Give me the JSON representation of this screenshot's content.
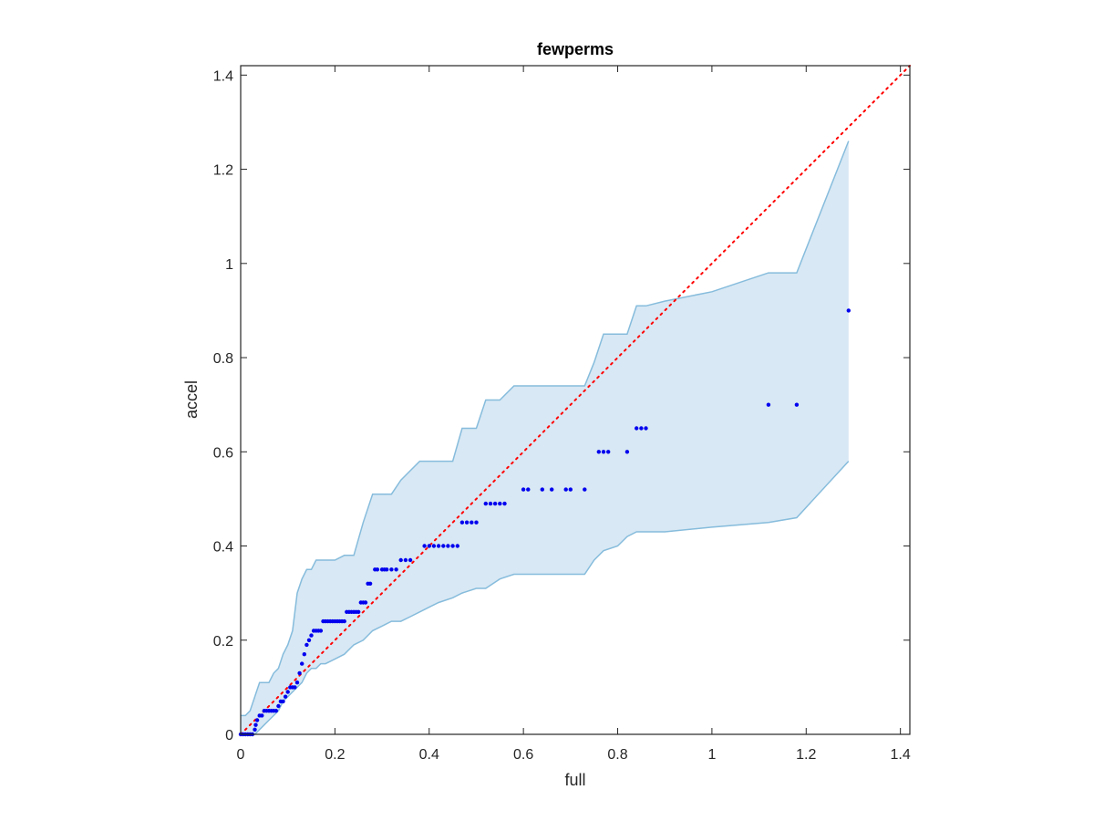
{
  "chart_data": {
    "type": "scatter",
    "title": "fewperms",
    "xlabel": "full",
    "ylabel": "accel",
    "xlim": [
      0,
      1.42
    ],
    "ylim": [
      0,
      1.42
    ],
    "xticks": [
      0,
      0.2,
      0.4,
      0.6,
      0.8,
      1,
      1.2,
      1.4
    ],
    "yticks": [
      0,
      0.2,
      0.4,
      0.6,
      0.8,
      1,
      1.2,
      1.4
    ],
    "xtick_labels": [
      "0",
      "0.2",
      "0.4",
      "0.6",
      "0.8",
      "1",
      "1.2",
      "1.4"
    ],
    "ytick_labels": [
      "0",
      "0.2",
      "0.4",
      "0.6",
      "0.8",
      "1",
      "1.2",
      "1.4"
    ],
    "grid": false,
    "colors": {
      "points": "#0000ee",
      "band_fill": "#d8e8f4",
      "band_edge": "#86bcdc",
      "reference_line": "#ff0000",
      "axes": "#262626"
    },
    "reference_line": {
      "style": "dotted",
      "from": [
        0,
        0
      ],
      "to": [
        1.42,
        1.42
      ]
    },
    "band_x": [
      0,
      0.01,
      0.02,
      0.03,
      0.04,
      0.05,
      0.06,
      0.07,
      0.08,
      0.09,
      0.1,
      0.11,
      0.12,
      0.13,
      0.14,
      0.15,
      0.16,
      0.17,
      0.18,
      0.2,
      0.22,
      0.24,
      0.26,
      0.28,
      0.3,
      0.32,
      0.34,
      0.36,
      0.38,
      0.4,
      0.42,
      0.45,
      0.47,
      0.5,
      0.52,
      0.55,
      0.58,
      0.6,
      0.65,
      0.7,
      0.73,
      0.75,
      0.77,
      0.8,
      0.82,
      0.84,
      0.86,
      0.9,
      1.0,
      1.12,
      1.18,
      1.29
    ],
    "band_upper": [
      0.04,
      0.04,
      0.05,
      0.08,
      0.11,
      0.11,
      0.11,
      0.13,
      0.14,
      0.17,
      0.19,
      0.22,
      0.3,
      0.33,
      0.35,
      0.35,
      0.37,
      0.37,
      0.37,
      0.37,
      0.38,
      0.38,
      0.45,
      0.51,
      0.51,
      0.51,
      0.54,
      0.56,
      0.58,
      0.58,
      0.58,
      0.58,
      0.65,
      0.65,
      0.71,
      0.71,
      0.74,
      0.74,
      0.74,
      0.74,
      0.74,
      0.79,
      0.85,
      0.85,
      0.85,
      0.91,
      0.91,
      0.92,
      0.94,
      0.98,
      0.98,
      1.26
    ],
    "band_lower": [
      0,
      0,
      0,
      0,
      0.01,
      0.02,
      0.03,
      0.04,
      0.05,
      0.07,
      0.08,
      0.09,
      0.1,
      0.11,
      0.13,
      0.14,
      0.14,
      0.15,
      0.15,
      0.16,
      0.17,
      0.19,
      0.2,
      0.22,
      0.23,
      0.24,
      0.24,
      0.25,
      0.26,
      0.27,
      0.28,
      0.29,
      0.3,
      0.31,
      0.31,
      0.33,
      0.34,
      0.34,
      0.34,
      0.34,
      0.34,
      0.37,
      0.39,
      0.4,
      0.42,
      0.43,
      0.43,
      0.43,
      0.44,
      0.45,
      0.46,
      0.58
    ],
    "points": [
      [
        0.0,
        0.0
      ],
      [
        0.005,
        0.0
      ],
      [
        0.01,
        0.0
      ],
      [
        0.015,
        0.0
      ],
      [
        0.02,
        0.0
      ],
      [
        0.025,
        0.0
      ],
      [
        0.03,
        0.01
      ],
      [
        0.032,
        0.02
      ],
      [
        0.035,
        0.03
      ],
      [
        0.04,
        0.04
      ],
      [
        0.045,
        0.04
      ],
      [
        0.05,
        0.05
      ],
      [
        0.055,
        0.05
      ],
      [
        0.06,
        0.05
      ],
      [
        0.065,
        0.05
      ],
      [
        0.07,
        0.05
      ],
      [
        0.075,
        0.05
      ],
      [
        0.08,
        0.06
      ],
      [
        0.085,
        0.07
      ],
      [
        0.09,
        0.07
      ],
      [
        0.095,
        0.08
      ],
      [
        0.1,
        0.09
      ],
      [
        0.105,
        0.1
      ],
      [
        0.11,
        0.1
      ],
      [
        0.115,
        0.1
      ],
      [
        0.12,
        0.11
      ],
      [
        0.125,
        0.13
      ],
      [
        0.13,
        0.15
      ],
      [
        0.135,
        0.17
      ],
      [
        0.14,
        0.19
      ],
      [
        0.145,
        0.2
      ],
      [
        0.15,
        0.21
      ],
      [
        0.155,
        0.22
      ],
      [
        0.16,
        0.22
      ],
      [
        0.165,
        0.22
      ],
      [
        0.17,
        0.22
      ],
      [
        0.175,
        0.24
      ],
      [
        0.18,
        0.24
      ],
      [
        0.185,
        0.24
      ],
      [
        0.19,
        0.24
      ],
      [
        0.195,
        0.24
      ],
      [
        0.2,
        0.24
      ],
      [
        0.205,
        0.24
      ],
      [
        0.21,
        0.24
      ],
      [
        0.215,
        0.24
      ],
      [
        0.22,
        0.24
      ],
      [
        0.225,
        0.26
      ],
      [
        0.23,
        0.26
      ],
      [
        0.235,
        0.26
      ],
      [
        0.24,
        0.26
      ],
      [
        0.245,
        0.26
      ],
      [
        0.25,
        0.26
      ],
      [
        0.255,
        0.28
      ],
      [
        0.26,
        0.28
      ],
      [
        0.265,
        0.28
      ],
      [
        0.27,
        0.32
      ],
      [
        0.275,
        0.32
      ],
      [
        0.285,
        0.35
      ],
      [
        0.29,
        0.35
      ],
      [
        0.3,
        0.35
      ],
      [
        0.305,
        0.35
      ],
      [
        0.31,
        0.35
      ],
      [
        0.32,
        0.35
      ],
      [
        0.33,
        0.35
      ],
      [
        0.34,
        0.37
      ],
      [
        0.35,
        0.37
      ],
      [
        0.36,
        0.37
      ],
      [
        0.39,
        0.4
      ],
      [
        0.4,
        0.4
      ],
      [
        0.41,
        0.4
      ],
      [
        0.42,
        0.4
      ],
      [
        0.43,
        0.4
      ],
      [
        0.44,
        0.4
      ],
      [
        0.45,
        0.4
      ],
      [
        0.46,
        0.4
      ],
      [
        0.47,
        0.45
      ],
      [
        0.48,
        0.45
      ],
      [
        0.49,
        0.45
      ],
      [
        0.5,
        0.45
      ],
      [
        0.52,
        0.49
      ],
      [
        0.53,
        0.49
      ],
      [
        0.54,
        0.49
      ],
      [
        0.55,
        0.49
      ],
      [
        0.56,
        0.49
      ],
      [
        0.6,
        0.52
      ],
      [
        0.61,
        0.52
      ],
      [
        0.64,
        0.52
      ],
      [
        0.66,
        0.52
      ],
      [
        0.69,
        0.52
      ],
      [
        0.7,
        0.52
      ],
      [
        0.73,
        0.52
      ],
      [
        0.76,
        0.6
      ],
      [
        0.77,
        0.6
      ],
      [
        0.78,
        0.6
      ],
      [
        0.82,
        0.6
      ],
      [
        0.84,
        0.65
      ],
      [
        0.85,
        0.65
      ],
      [
        0.86,
        0.65
      ],
      [
        1.12,
        0.7
      ],
      [
        1.18,
        0.7
      ],
      [
        1.29,
        0.9
      ]
    ]
  }
}
